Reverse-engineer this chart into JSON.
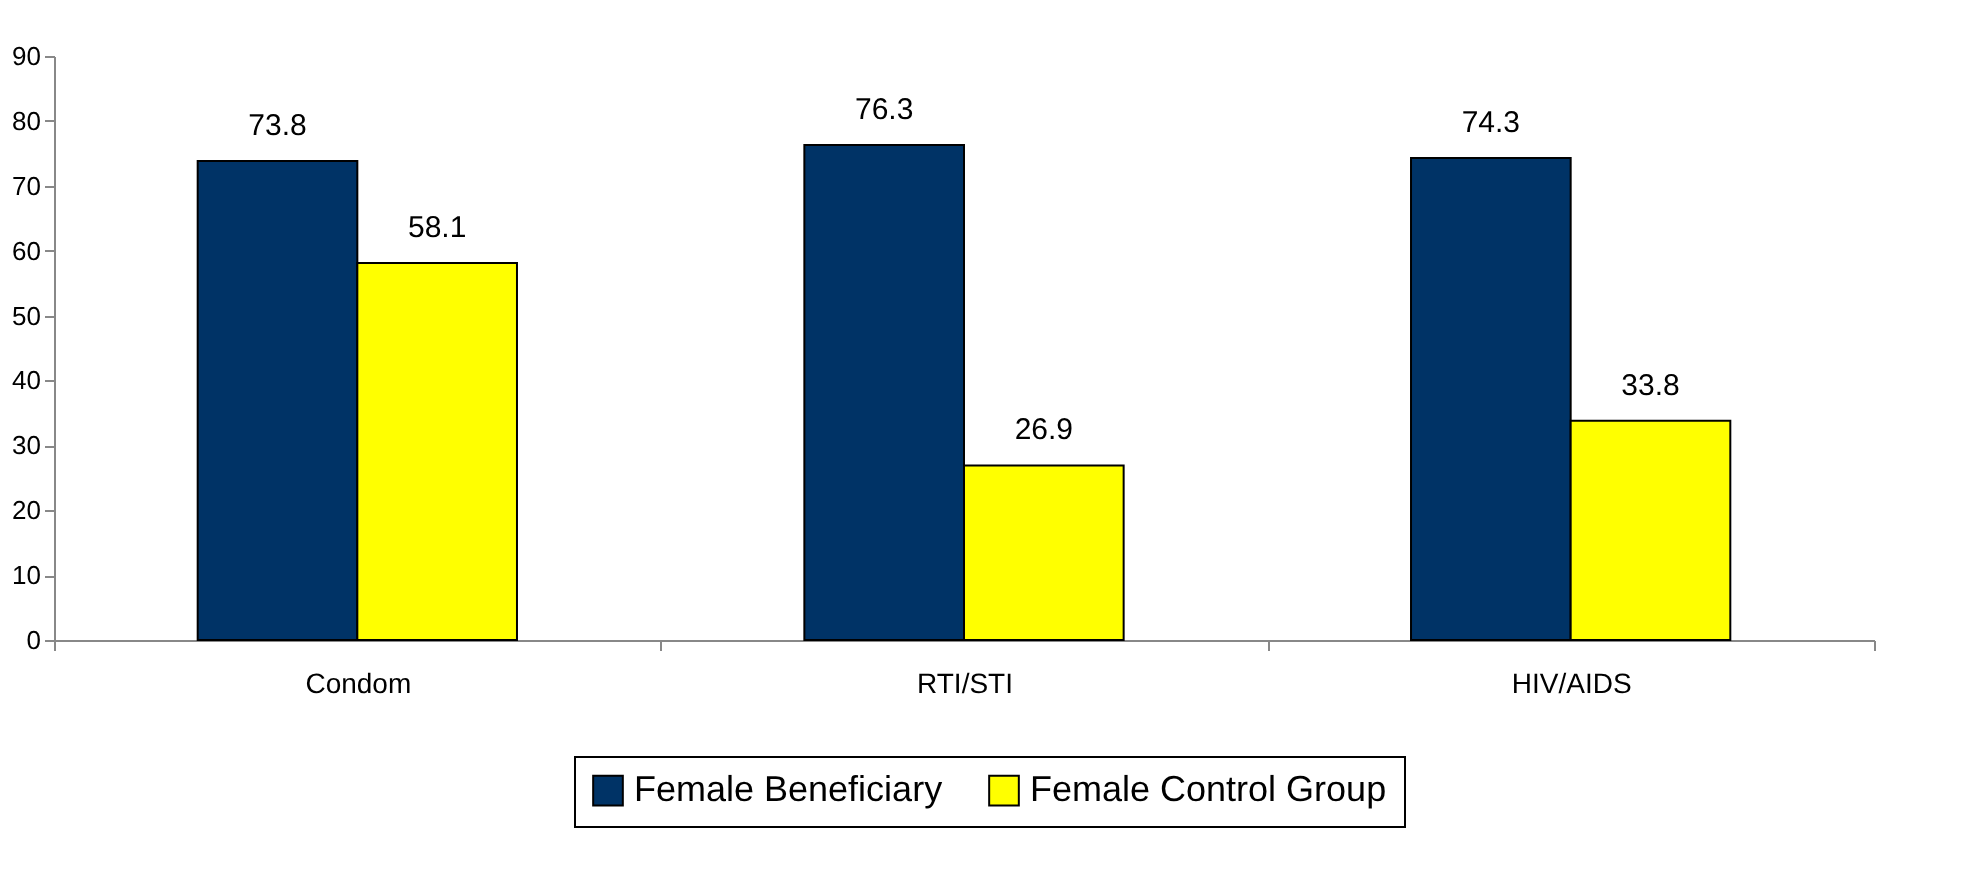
{
  "chart_data": {
    "type": "bar",
    "categories": [
      "Condom",
      "RTI/STI",
      "HIV/AIDS"
    ],
    "series": [
      {
        "name": "Female Beneficiary",
        "color": "#003366",
        "values": [
          73.8,
          76.3,
          74.3
        ]
      },
      {
        "name": "Female Control Group",
        "color": "#ffff00",
        "values": [
          58.1,
          26.9,
          33.8
        ]
      }
    ],
    "ylim": [
      0,
      90
    ],
    "yticks": [
      0,
      10,
      20,
      30,
      40,
      50,
      60,
      70,
      80,
      90
    ],
    "grid": false,
    "legend": "bottom",
    "data_labels": true
  }
}
